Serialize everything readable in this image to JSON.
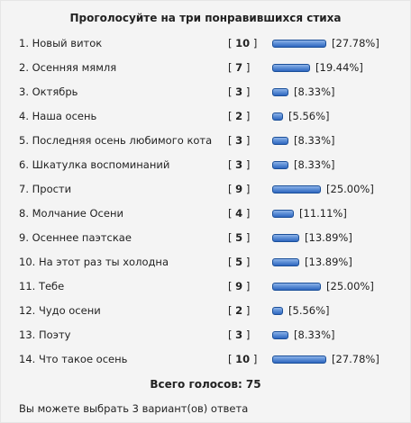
{
  "poll": {
    "title": "Проголосуйте на три понравившихся стиха",
    "options": [
      {
        "label": "1. Новый виток",
        "votes": "10",
        "percent": "27.78%",
        "share": 0.2778
      },
      {
        "label": "2. Осенняя мямля",
        "votes": "7",
        "percent": "19.44%",
        "share": 0.1944
      },
      {
        "label": "3. Октябрь",
        "votes": "3",
        "percent": "8.33%",
        "share": 0.0833
      },
      {
        "label": "4. Наша осень",
        "votes": "2",
        "percent": "5.56%",
        "share": 0.0556
      },
      {
        "label": "5. Последняя осень любимого кота",
        "votes": "3",
        "percent": "8.33%",
        "share": 0.0833
      },
      {
        "label": "6. Шкатулка воспоминаний",
        "votes": "3",
        "percent": "8.33%",
        "share": 0.0833
      },
      {
        "label": "7. Прости",
        "votes": "9",
        "percent": "25.00%",
        "share": 0.25
      },
      {
        "label": "8. Молчание Осени",
        "votes": "4",
        "percent": "11.11%",
        "share": 0.1111
      },
      {
        "label": "9. Осеннее паэтскае",
        "votes": "5",
        "percent": "13.89%",
        "share": 0.1389
      },
      {
        "label": "10. На этот раз ты холодна",
        "votes": "5",
        "percent": "13.89%",
        "share": 0.1389
      },
      {
        "label": "11. Тебе",
        "votes": "9",
        "percent": "25.00%",
        "share": 0.25
      },
      {
        "label": "12. Чудо осени",
        "votes": "2",
        "percent": "5.56%",
        "share": 0.0556
      },
      {
        "label": "13. Поэту",
        "votes": "3",
        "percent": "8.33%",
        "share": 0.0833
      },
      {
        "label": "14. Что такое осень",
        "votes": "10",
        "percent": "27.78%",
        "share": 0.2778
      }
    ],
    "total_text": "Всего голосов: 75",
    "note": "Вы можете выбрать 3 вариант(ов) ответа",
    "bar_color": "#4a7fd0"
  }
}
